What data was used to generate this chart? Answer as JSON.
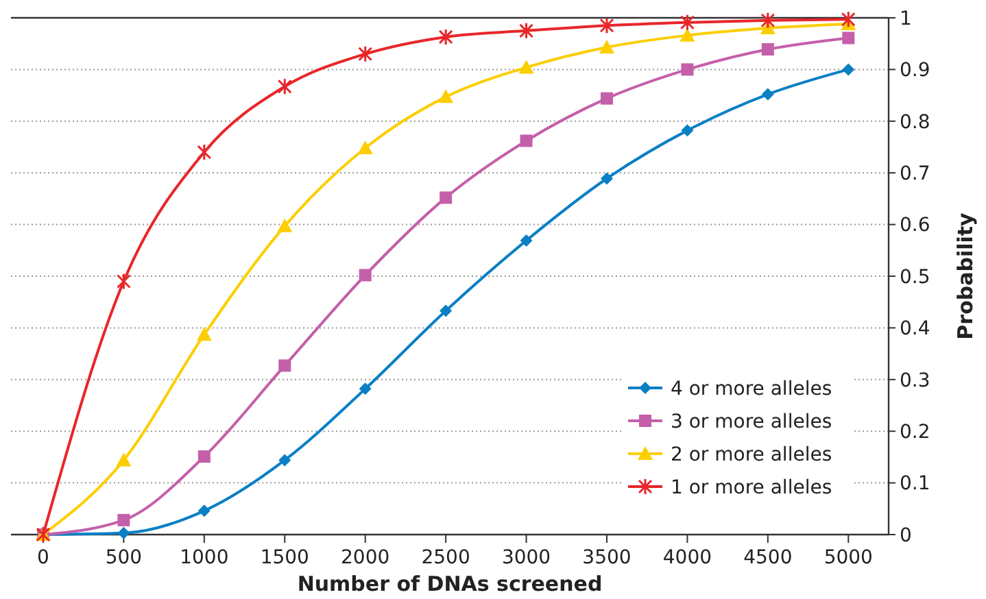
{
  "chart_data": {
    "type": "line",
    "xlabel": "Number of DNAs screened",
    "ylabel": "Probability",
    "x": [
      0,
      500,
      1000,
      1500,
      2000,
      2500,
      3000,
      3500,
      4000,
      4500,
      5000
    ],
    "xlim": [
      -200,
      5250
    ],
    "xticks": [
      0,
      500,
      1000,
      1500,
      2000,
      2500,
      3000,
      3500,
      4000,
      4500,
      5000
    ],
    "ylim": [
      0,
      1
    ],
    "yticks": [
      0,
      0.1,
      0.2,
      0.3,
      0.4,
      0.5,
      0.6,
      0.7,
      0.8,
      0.9,
      1
    ],
    "grid": "y",
    "legend": "bottom right",
    "line_style": "solid",
    "series": [
      {
        "name": "4 or more alleles",
        "color": "#0a7fc4",
        "marker": "diamond",
        "values": [
          0,
          0.003,
          0.046,
          0.144,
          0.282,
          0.433,
          0.569,
          0.689,
          0.782,
          0.852,
          0.9
        ]
      },
      {
        "name": "3 or more alleles",
        "color": "#c45faa",
        "marker": "square",
        "values": [
          0,
          0.028,
          0.151,
          0.327,
          0.502,
          0.652,
          0.762,
          0.844,
          0.9,
          0.939,
          0.961
        ]
      },
      {
        "name": "2 or more alleles",
        "color": "#fcce00",
        "marker": "triangle",
        "values": [
          0,
          0.144,
          0.387,
          0.597,
          0.748,
          0.847,
          0.904,
          0.943,
          0.966,
          0.98,
          0.988
        ]
      },
      {
        "name": "1 or more alleles",
        "color": "#e8262a",
        "marker": "cross",
        "values": [
          0,
          0.49,
          0.74,
          0.867,
          0.93,
          0.963,
          0.975,
          0.985,
          0.991,
          0.995,
          0.997
        ]
      }
    ]
  }
}
